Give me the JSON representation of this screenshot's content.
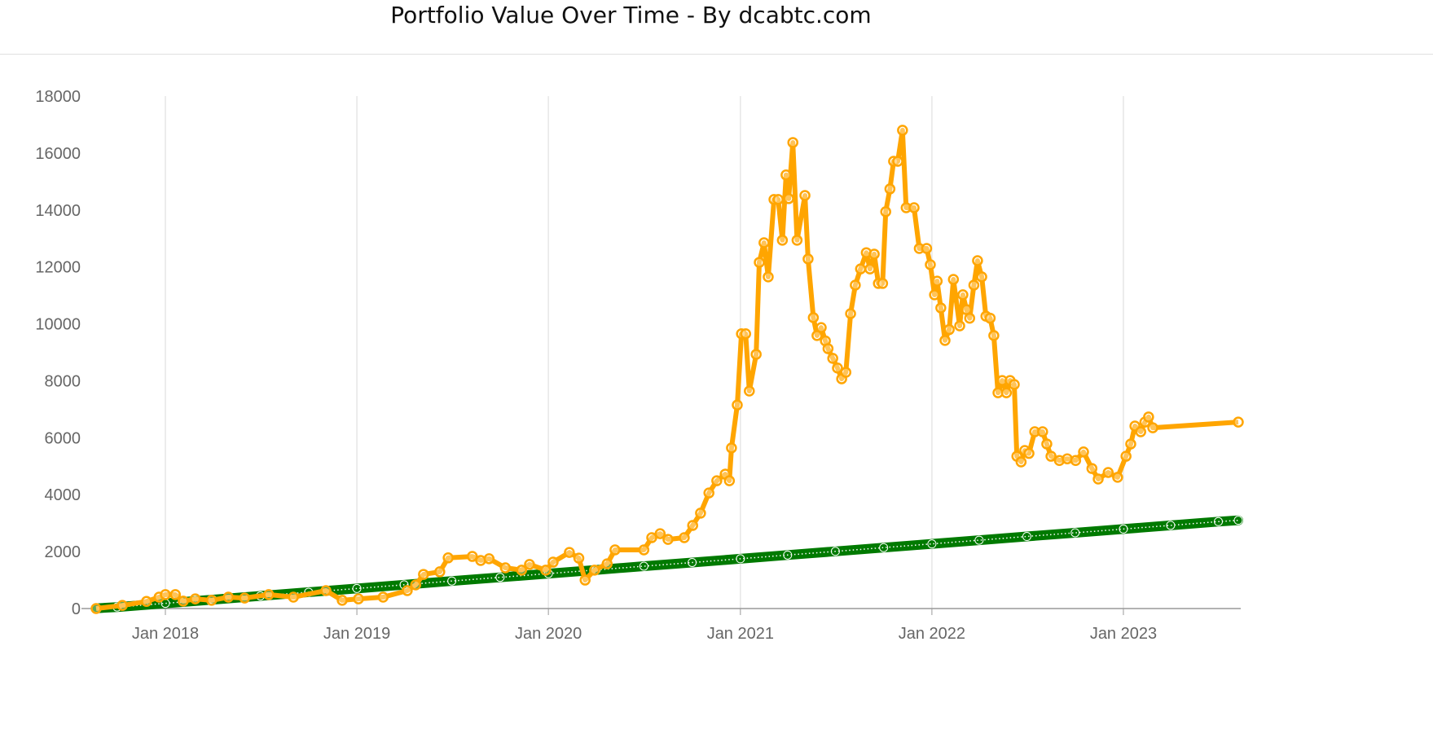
{
  "chart_data": {
    "type": "line",
    "title": "Portfolio Value Over Time - By dcabtc.com",
    "xlabel": "",
    "ylabel": "",
    "ylim": [
      0,
      18000
    ],
    "xlim": [
      "2017-08-22",
      "2023-08-08"
    ],
    "grid": {
      "vertical": true,
      "horizontal": false
    },
    "y_ticks": [
      "0",
      "2000",
      "4000",
      "6000",
      "8000",
      "10000",
      "12000",
      "14000",
      "16000",
      "18000"
    ],
    "x_ticks": [
      {
        "date": "2018-01-01",
        "label": "Jan 2018"
      },
      {
        "date": "2019-01-01",
        "label": "Jan 2019"
      },
      {
        "date": "2020-01-01",
        "label": "Jan 2020"
      },
      {
        "date": "2021-01-01",
        "label": "Jan 2021"
      },
      {
        "date": "2022-01-01",
        "label": "Jan 2022"
      },
      {
        "date": "2023-01-01",
        "label": "Jan 2023"
      }
    ],
    "series": [
      {
        "color": "#ffa500",
        "x": [
          "2017-08-22",
          "2017-10-11",
          "2017-11-26",
          "2017-12-20",
          "2018-01-01",
          "2018-01-20",
          "2018-02-04",
          "2018-02-27",
          "2018-03-30",
          "2018-05-01",
          "2018-06-01",
          "2018-07-17",
          "2018-09-02",
          "2018-11-03",
          "2018-12-04",
          "2019-01-04",
          "2019-02-20",
          "2019-04-07",
          "2019-04-23",
          "2019-05-08",
          "2019-06-08",
          "2019-06-24",
          "2019-08-09",
          "2019-08-25",
          "2019-09-10",
          "2019-10-11",
          "2019-11-11",
          "2019-11-26",
          "2019-12-27",
          "2020-01-10",
          "2020-02-10",
          "2020-02-28",
          "2020-03-11",
          "2020-03-29",
          "2020-04-22",
          "2020-05-07",
          "2020-07-01",
          "2020-07-16",
          "2020-08-01",
          "2020-08-16",
          "2020-09-16",
          "2020-10-02",
          "2020-10-17",
          "2020-11-02",
          "2020-11-17",
          "2020-12-03",
          "2020-12-11",
          "2020-12-15",
          "2020-12-26",
          "2021-01-03",
          "2021-01-11",
          "2021-01-18",
          "2021-01-31",
          "2021-02-06",
          "2021-02-15",
          "2021-02-23",
          "2021-03-06",
          "2021-03-14",
          "2021-03-22",
          "2021-03-29",
          "2021-04-03",
          "2021-04-11",
          "2021-04-19",
          "2021-05-04",
          "2021-05-10",
          "2021-05-20",
          "2021-05-27",
          "2021-06-04",
          "2021-06-12",
          "2021-06-17",
          "2021-06-26",
          "2021-07-05",
          "2021-07-13",
          "2021-07-21",
          "2021-07-30",
          "2021-08-08",
          "2021-08-18",
          "2021-08-29",
          "2021-09-05",
          "2021-09-13",
          "2021-09-21",
          "2021-09-29",
          "2021-10-05",
          "2021-10-13",
          "2021-10-20",
          "2021-10-28",
          "2021-11-06",
          "2021-11-13",
          "2021-11-28",
          "2021-12-08",
          "2021-12-22",
          "2021-12-29",
          "2022-01-06",
          "2022-01-11",
          "2022-01-18",
          "2022-01-26",
          "2022-02-03",
          "2022-02-11",
          "2022-02-23",
          "2022-03-01",
          "2022-03-08",
          "2022-03-14",
          "2022-03-22",
          "2022-03-29",
          "2022-04-06",
          "2022-04-14",
          "2022-04-22",
          "2022-04-29",
          "2022-05-07",
          "2022-05-15",
          "2022-05-23",
          "2022-05-30",
          "2022-06-07",
          "2022-06-12",
          "2022-06-20",
          "2022-06-27",
          "2022-07-05",
          "2022-07-16",
          "2022-07-31",
          "2022-08-08",
          "2022-08-16",
          "2022-09-01",
          "2022-09-16",
          "2022-10-02",
          "2022-10-17",
          "2022-11-02",
          "2022-11-14",
          "2022-12-03",
          "2022-12-21",
          "2023-01-06",
          "2023-01-15",
          "2023-01-23",
          "2023-02-03",
          "2023-02-11",
          "2023-02-18",
          "2023-02-26",
          "2023-08-08"
        ],
        "values": [
          0,
          110,
          250,
          400,
          490,
          490,
          260,
          340,
          290,
          400,
          370,
          490,
          400,
          630,
          290,
          340,
          400,
          630,
          830,
          1200,
          1290,
          1780,
          1830,
          1690,
          1750,
          1430,
          1350,
          1550,
          1350,
          1630,
          1970,
          1770,
          1000,
          1350,
          1570,
          2060,
          2060,
          2490,
          2630,
          2430,
          2490,
          2920,
          3350,
          4060,
          4490,
          4720,
          4490,
          5640,
          7150,
          9650,
          9650,
          7640,
          8930,
          12160,
          12850,
          11650,
          14370,
          14370,
          12940,
          15230,
          14400,
          16370,
          12940,
          14510,
          12280,
          10220,
          9590,
          9870,
          9400,
          9130,
          8790,
          8450,
          8070,
          8300,
          10360,
          11360,
          11930,
          12500,
          11930,
          12450,
          11420,
          11420,
          13940,
          14740,
          15710,
          15710,
          16800,
          14080,
          14080,
          12650,
          12650,
          12080,
          11020,
          11500,
          10560,
          9420,
          9800,
          11560,
          9930,
          11020,
          10500,
          10200,
          11360,
          12220,
          11650,
          10270,
          10200,
          9590,
          7580,
          8010,
          7580,
          8010,
          7870,
          5350,
          5150,
          5550,
          5450,
          6210,
          6210,
          5780,
          5350,
          5200,
          5260,
          5200,
          5500,
          4920,
          4550,
          4780,
          4610,
          5350,
          5780,
          6410,
          6210,
          6550,
          6730,
          6350,
          6550
        ]
      },
      {
        "color": "#007a00",
        "x": [
          "2017-08-22",
          "2017-10-01",
          "2018-01-01",
          "2018-04-01",
          "2018-07-01",
          "2018-10-01",
          "2019-01-01",
          "2019-04-01",
          "2019-07-01",
          "2019-10-01",
          "2020-01-01",
          "2020-04-01",
          "2020-07-01",
          "2020-10-01",
          "2021-01-01",
          "2021-04-01",
          "2021-07-01",
          "2021-10-01",
          "2022-01-01",
          "2022-04-01",
          "2022-07-01",
          "2022-10-01",
          "2023-01-01",
          "2023-04-01",
          "2023-07-01",
          "2023-08-08"
        ],
        "values": [
          10,
          52,
          183,
          313,
          444,
          574,
          705,
          835,
          966,
          1096,
          1227,
          1357,
          1488,
          1618,
          1749,
          1879,
          2010,
          2140,
          2271,
          2401,
          2532,
          2662,
          2793,
          2923,
          3054,
          3100
        ]
      }
    ]
  }
}
